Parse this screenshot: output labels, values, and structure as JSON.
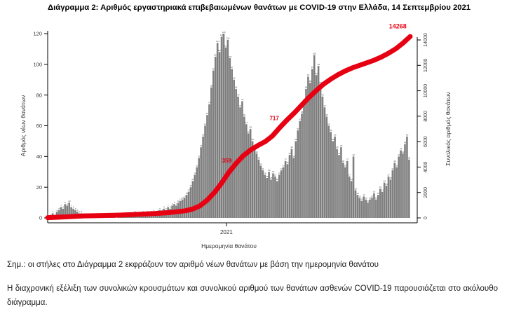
{
  "title": "Διάγραμμα 2: Αριθμός εργαστηριακά επιβεβαιωμένων θανάτων με COVID-19 στην Ελλάδα, 14 Σεπτεμβρίου 2021",
  "notes": [
    "Σημ.: οι στήλες στο Διάγραμμα 2 εκφράζουν τον αριθμό νέων θανάτων με βάση την ημερομηνία θανάτου",
    "Η διαχρονική εξέλιξη των συνολικών κρουσμάτων και συνολικού αριθμού των θανάτων ασθενών COVID-19 παρουσιάζεται στο ακόλουθο διάγραμμα."
  ],
  "chart_data": {
    "type": "bar+line",
    "title": "Διάγραμμα 2: Αριθμός εργαστηριακά επιβεβαιωμένων θανάτων με COVID-19 στην Ελλάδα, 14 Σεπτεμβρίου 2021",
    "xlabel": "Ημερομηνία θανάτου",
    "ylabel_left": "Αριθμός νέων θανάτων",
    "ylabel_right": "Συνολικός αριθμός θανάτων",
    "ylim_left": [
      0,
      120
    ],
    "ylim_right": [
      0,
      14000
    ],
    "yticks_left": [
      0,
      20,
      40,
      60,
      80,
      100,
      120
    ],
    "yticks_right": [
      0,
      2000,
      4000,
      6000,
      8000,
      10000,
      12000,
      14000
    ],
    "xticks": [
      {
        "label": "2021",
        "pos": 0.493
      }
    ],
    "grid": false,
    "legend": "none",
    "bar_color": "#7f7f7f",
    "bar_label_color": "#4d4d4d",
    "line_color": "#e60012",
    "bars_daily_new_deaths": [
      1,
      2,
      3,
      2,
      4,
      5,
      7,
      6,
      9,
      8,
      10,
      7,
      6,
      5,
      4,
      3,
      3,
      2,
      2,
      1,
      2,
      1,
      0,
      1,
      2,
      1,
      1,
      1,
      0,
      1,
      2,
      1,
      1,
      0,
      1,
      1,
      2,
      1,
      2,
      1,
      1,
      2,
      3,
      2,
      1,
      2,
      3,
      2,
      3,
      2,
      3,
      4,
      3,
      4,
      5,
      4,
      6,
      5,
      7,
      6,
      8,
      9,
      8,
      10,
      11,
      12,
      13,
      15,
      17,
      20,
      24,
      28,
      33,
      39,
      46,
      53,
      60,
      67,
      74,
      85,
      96,
      105,
      114,
      108,
      118,
      120,
      111,
      116,
      104,
      97,
      90,
      84,
      79,
      72,
      76,
      66,
      61,
      55,
      58,
      50,
      45,
      42,
      38,
      34,
      31,
      28,
      26,
      30,
      25,
      29,
      27,
      24,
      28,
      31,
      33,
      37,
      35,
      41,
      45,
      39,
      50,
      57,
      63,
      68,
      76,
      84,
      92,
      88,
      97,
      106,
      93,
      99,
      87,
      79,
      72,
      66,
      60,
      56,
      50,
      53,
      45,
      41,
      46,
      36,
      33,
      37,
      27,
      24,
      40,
      18,
      15,
      13,
      11,
      14,
      12,
      10,
      12,
      13,
      16,
      12,
      15,
      19,
      17,
      23,
      21,
      27,
      25,
      31,
      36,
      33,
      40,
      44,
      42,
      48,
      53,
      38
    ],
    "cumulative_line": [
      [
        0.0,
        20
      ],
      [
        0.05,
        80
      ],
      [
        0.1,
        160
      ],
      [
        0.15,
        190
      ],
      [
        0.2,
        220
      ],
      [
        0.25,
        280
      ],
      [
        0.3,
        350
      ],
      [
        0.34,
        430
      ],
      [
        0.38,
        560
      ],
      [
        0.4,
        700
      ],
      [
        0.42,
        950
      ],
      [
        0.44,
        1400
      ],
      [
        0.46,
        2000
      ],
      [
        0.48,
        2750
      ],
      [
        0.5,
        3600
      ],
      [
        0.52,
        4300
      ],
      [
        0.54,
        4900
      ],
      [
        0.56,
        5350
      ],
      [
        0.58,
        5700
      ],
      [
        0.6,
        6000
      ],
      [
        0.62,
        6450
      ],
      [
        0.64,
        7100
      ],
      [
        0.66,
        7700
      ],
      [
        0.68,
        8250
      ],
      [
        0.7,
        8850
      ],
      [
        0.72,
        9450
      ],
      [
        0.74,
        10000
      ],
      [
        0.76,
        10500
      ],
      [
        0.78,
        10900
      ],
      [
        0.8,
        11250
      ],
      [
        0.82,
        11550
      ],
      [
        0.84,
        11800
      ],
      [
        0.86,
        12000
      ],
      [
        0.88,
        12200
      ],
      [
        0.9,
        12400
      ],
      [
        0.92,
        12650
      ],
      [
        0.94,
        12950
      ],
      [
        0.96,
        13300
      ],
      [
        0.98,
        13750
      ],
      [
        1.0,
        14268
      ]
    ],
    "annotations": [
      {
        "text": "359",
        "pos": 0.507,
        "value": 4350,
        "bold": true,
        "size": 8
      },
      {
        "text": "717",
        "pos": 0.638,
        "value": 7700,
        "bold": true,
        "size": 8
      },
      {
        "text": "14268",
        "pos": 0.99,
        "value": 14900,
        "bold": true,
        "size": 9
      }
    ]
  }
}
